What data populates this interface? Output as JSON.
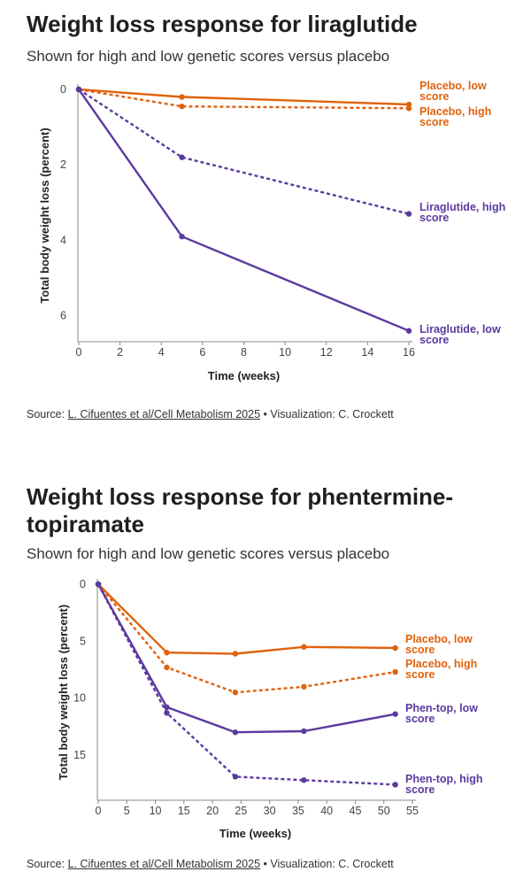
{
  "colors": {
    "placebo": "#e0620d",
    "drug": "#5b3a9e",
    "axis": "#888888",
    "text": "#222222"
  },
  "chart_data": [
    {
      "type": "line",
      "title": "Weight loss response for liraglutide",
      "subtitle": "Shown for high and low genetic scores versus placebo",
      "xlabel": "Time (weeks)",
      "ylabel": "Total body weight loss (percent)",
      "xlim": [
        0,
        16
      ],
      "ylim": [
        0,
        6.5
      ],
      "y_inverted": true,
      "xticks": [
        "0",
        "2",
        "4",
        "6",
        "8",
        "10",
        "12",
        "14",
        "16"
      ],
      "yticks": [
        "0",
        "2",
        "4",
        "6"
      ],
      "series": [
        {
          "name": "Placebo, low score",
          "label_lines": [
            "Placebo, low",
            "score"
          ],
          "color": "placebo",
          "dashed": false,
          "x": [
            0,
            5,
            16
          ],
          "y": [
            0,
            0.2,
            0.4
          ]
        },
        {
          "name": "Placebo, high score",
          "label_lines": [
            "Placebo, high",
            "score"
          ],
          "color": "placebo",
          "dashed": true,
          "x": [
            0,
            5,
            16
          ],
          "y": [
            0,
            0.45,
            0.5
          ]
        },
        {
          "name": "Liraglutide, high score",
          "label_lines": [
            "Liraglutide, high",
            "score"
          ],
          "color": "drug",
          "dashed": true,
          "x": [
            0,
            5,
            16
          ],
          "y": [
            0,
            1.8,
            3.3
          ]
        },
        {
          "name": "Liraglutide, low score",
          "label_lines": [
            "Liraglutide, low",
            "score"
          ],
          "color": "drug",
          "dashed": false,
          "x": [
            0,
            5,
            16
          ],
          "y": [
            0,
            3.9,
            6.4
          ]
        }
      ],
      "source": {
        "prefix": "Source: ",
        "link": "L. Cifuentes et al/Cell Metabolism 2025",
        "suffix": " • Visualization: C. Crockett"
      }
    },
    {
      "type": "line",
      "title": "Weight loss response for phentermine-topiramate",
      "title_lines": [
        "Weight loss response for phentermine-",
        "topiramate"
      ],
      "subtitle": "Shown for high and low genetic scores versus placebo",
      "xlabel": "Time (weeks)",
      "ylabel": "Total body weight loss (percent)",
      "xlim": [
        0,
        55
      ],
      "ylim": [
        0,
        18.5
      ],
      "y_inverted": true,
      "xticks": [
        "0",
        "5",
        "10",
        "15",
        "20",
        "25",
        "30",
        "35",
        "40",
        "45",
        "50",
        "55"
      ],
      "yticks": [
        "0",
        "5",
        "10",
        "15"
      ],
      "series": [
        {
          "name": "Placebo, low score",
          "label_lines": [
            "Placebo, low",
            "score"
          ],
          "color": "placebo",
          "dashed": false,
          "x": [
            0,
            12,
            24,
            36,
            52
          ],
          "y": [
            0,
            6.0,
            6.1,
            5.5,
            5.6
          ]
        },
        {
          "name": "Placebo, high score",
          "label_lines": [
            "Placebo, high",
            "score"
          ],
          "color": "placebo",
          "dashed": true,
          "x": [
            0,
            12,
            24,
            36,
            52
          ],
          "y": [
            0,
            7.3,
            9.5,
            9.0,
            7.7
          ]
        },
        {
          "name": "Phen-top, low score",
          "label_lines": [
            "Phen-top, low",
            "score"
          ],
          "color": "drug",
          "dashed": false,
          "x": [
            0,
            12,
            24,
            36,
            52
          ],
          "y": [
            0,
            10.8,
            13.0,
            12.9,
            11.4
          ]
        },
        {
          "name": "Phen-top, high score",
          "label_lines": [
            "Phen-top, high",
            "score"
          ],
          "color": "drug",
          "dashed": true,
          "x": [
            0,
            12,
            24,
            36,
            52
          ],
          "y": [
            0,
            11.3,
            16.9,
            17.2,
            17.6
          ]
        }
      ],
      "source": {
        "prefix": "Source: ",
        "link": "L. Cifuentes et al/Cell Metabolism 2025",
        "suffix": " • Visualization: C. Crockett"
      }
    }
  ]
}
